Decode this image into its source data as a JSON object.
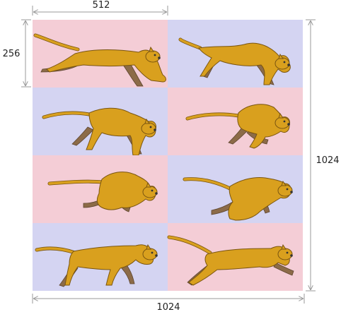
{
  "dimensions": {
    "frame_width": "512",
    "frame_height": "256",
    "sheet_width": "1024",
    "sheet_height": "1024"
  },
  "sheet": {
    "columns": 2,
    "rows": 4,
    "tile_colors": [
      "#f4cdd6",
      "#d4d4f2"
    ],
    "frames": [
      {
        "pose": "extended-leap",
        "bg": "pink"
      },
      {
        "pose": "reach",
        "bg": "lavender"
      },
      {
        "pose": "gather",
        "bg": "lavender"
      },
      {
        "pose": "crouch",
        "bg": "pink"
      },
      {
        "pose": "tuck",
        "bg": "pink"
      },
      {
        "pose": "push-off",
        "bg": "lavender"
      },
      {
        "pose": "stride",
        "bg": "lavender"
      },
      {
        "pose": "full-stretch",
        "bg": "pink"
      }
    ]
  },
  "cougar_colors": {
    "body": "#d9a01e",
    "far_legs": "#8c6b48",
    "outline": "#7a5510",
    "nose": "#333333"
  }
}
